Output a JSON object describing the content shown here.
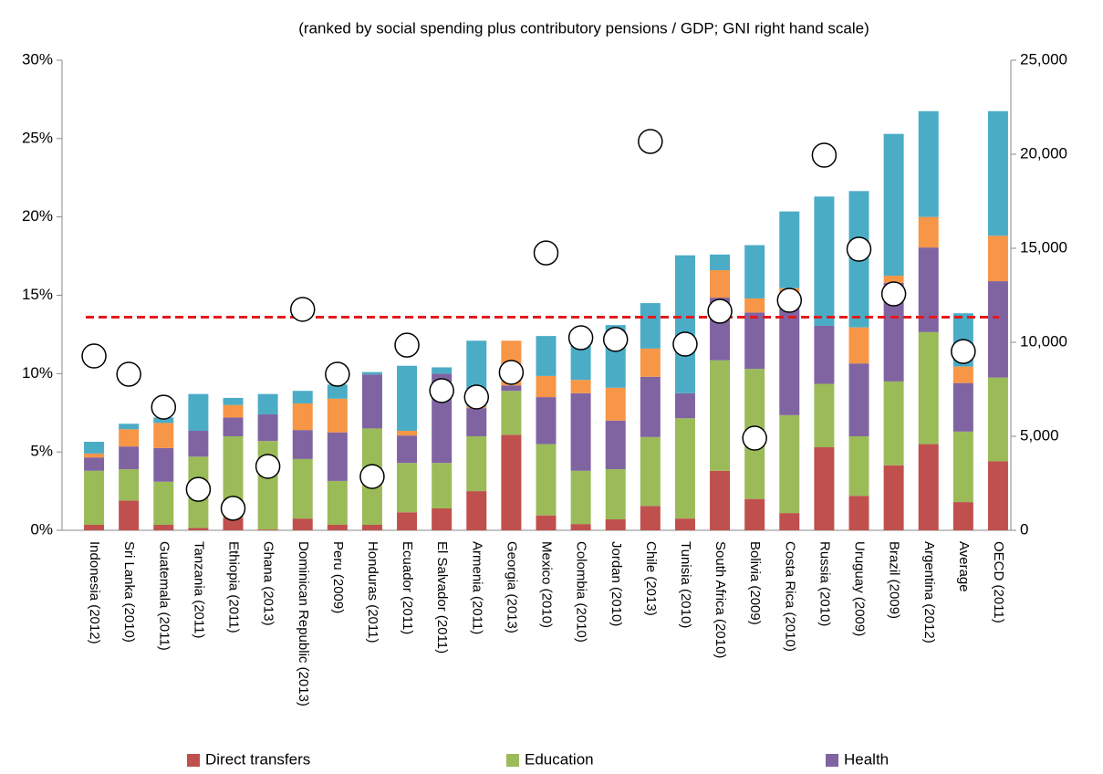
{
  "chart_data": {
    "type": "bar",
    "subtitle": "(ranked by social spending plus contributory pensions / GDP; GNI right hand scale)",
    "categories": [
      "Indonesia (2012)",
      "Sri Lanka (2010)",
      "Guatemala (2011)",
      "Tanzania (2011)",
      "Ethiopia (2011)",
      "Ghana (2013)",
      "Dominican Republic (2013)",
      "Peru (2009)",
      "Honduras (2011)",
      "Ecuador (2011)",
      "El Salvador (2011)",
      "Armenia (2011)",
      "Georgia (2013)",
      "Mexico (2010)",
      "Colombia (2010)",
      "Jordan (2010)",
      "Chile (2013)",
      "Tunisia (2010)",
      "South Africa (2010)",
      "Bolivia (2009)",
      "Costa Rica (2010)",
      "Russia (2010)",
      "Uruguay (2009)",
      "Brazil (2009)",
      "Argentina (2012)",
      "Average",
      "OECD (2011)"
    ],
    "series": [
      {
        "name": "Direct transfers",
        "color": "#c0504d",
        "values": [
          0.35,
          1.9,
          0.35,
          0.15,
          0.8,
          0.05,
          0.75,
          0.35,
          0.35,
          1.15,
          1.4,
          2.5,
          6.1,
          0.95,
          0.4,
          0.7,
          1.55,
          0.75,
          3.8,
          2.0,
          1.1,
          5.3,
          2.2,
          4.15,
          5.5,
          1.8,
          4.4
        ]
      },
      {
        "name": "Education",
        "color": "#9bbb59",
        "values": [
          3.45,
          2.0,
          2.75,
          4.55,
          5.2,
          5.65,
          3.8,
          2.8,
          6.15,
          3.15,
          2.9,
          3.5,
          2.8,
          4.55,
          3.4,
          3.2,
          4.4,
          6.4,
          7.05,
          8.3,
          6.25,
          4.05,
          3.8,
          5.35,
          7.15,
          4.5,
          5.35
        ]
      },
      {
        "name": "Health",
        "color": "#8064a2",
        "values": [
          0.85,
          1.45,
          2.15,
          1.65,
          1.2,
          1.7,
          1.85,
          3.1,
          3.45,
          1.75,
          5.7,
          1.8,
          0.35,
          3.0,
          4.95,
          3.1,
          3.85,
          1.6,
          4.0,
          3.6,
          7.55,
          3.7,
          4.65,
          6.3,
          5.4,
          3.1,
          6.15
        ]
      },
      {
        "color": "#f79646",
        "values": [
          0.25,
          1.1,
          1.6,
          0,
          0.8,
          0,
          1.7,
          2.15,
          0,
          0.3,
          0,
          0.1,
          2.85,
          1.35,
          0.85,
          2.1,
          1.8,
          0,
          1.75,
          0.9,
          0.55,
          0,
          2.3,
          0.45,
          1.95,
          1.05,
          2.9
        ]
      },
      {
        "color": "#4bacc6",
        "values": [
          0.75,
          0.35,
          0.35,
          2.35,
          0.45,
          1.3,
          0.8,
          0.9,
          0.15,
          4.15,
          0.4,
          4.2,
          0,
          2.55,
          2.65,
          4.0,
          2.9,
          8.8,
          1.0,
          3.4,
          4.9,
          8.25,
          8.7,
          9.05,
          6.75,
          3.4,
          7.95
        ]
      },
      {
        "type": "scatter",
        "axis": "y2",
        "color": "#ffffff",
        "values": [
          9270,
          8300,
          6550,
          2180,
          1170,
          3400,
          11750,
          8300,
          2860,
          9850,
          7430,
          7090,
          8400,
          14750,
          10240,
          10150,
          20680,
          9900,
          11650,
          4900,
          12230,
          19950,
          14950,
          12570,
          null,
          9510,
          null
        ]
      }
    ],
    "reference_line": 13.6,
    "reference_color": "#e41a1c",
    "ylim": [
      0,
      30
    ],
    "yticks": [
      {
        "value": 0,
        "label": "0%"
      },
      {
        "value": 5,
        "label": "5%"
      },
      {
        "value": 10,
        "label": "10%"
      },
      {
        "value": 15,
        "label": "15%"
      },
      {
        "value": 20,
        "label": "20%"
      },
      {
        "value": 25,
        "label": "25%"
      },
      {
        "value": 30,
        "label": "30%"
      }
    ],
    "y2lim": [
      0,
      25000
    ],
    "y2ticks": [
      0,
      {
        "value": 5000,
        "label": "5,000"
      },
      {
        "value": 10000,
        "label": "10,000"
      },
      {
        "value": 15000,
        "label": "15,000"
      },
      {
        "value": 20000,
        "label": "20,000"
      },
      {
        "value": 25000,
        "label": "25,000"
      }
    ],
    "legend": "bottom"
  }
}
